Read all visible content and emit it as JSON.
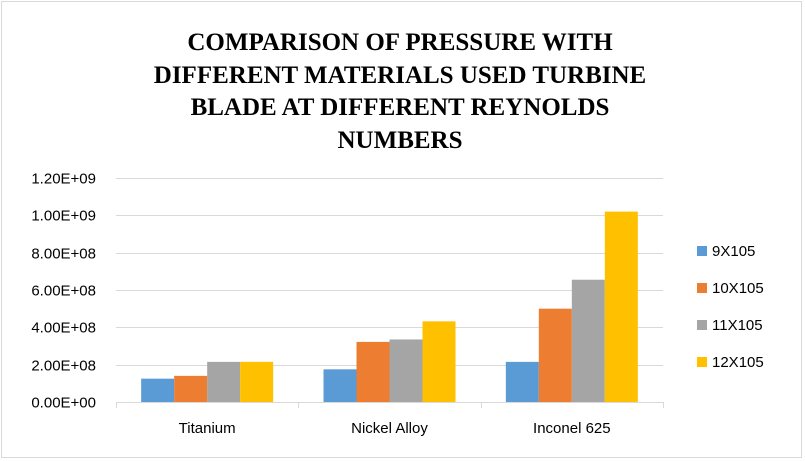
{
  "chart_data": {
    "type": "bar",
    "title": "COMPARISON OF PRESSURE WITH DIFFERENT MATERIALS USED TURBINE BLADE AT DIFFERENT REYNOLDS NUMBERS",
    "xlabel": "",
    "ylabel": "",
    "categories": [
      "Titanium",
      "Nickel Alloy",
      "Inconel 625"
    ],
    "series": [
      {
        "name": "9X105",
        "color": "#5b9bd5",
        "values": [
          125000000,
          175000000,
          215000000
        ]
      },
      {
        "name": "10X105",
        "color": "#ed7d31",
        "values": [
          140000000,
          322000000,
          500000000
        ]
      },
      {
        "name": "11X105",
        "color": "#a5a5a5",
        "values": [
          215000000,
          335000000,
          655000000
        ]
      },
      {
        "name": "12X105",
        "color": "#ffc000",
        "values": [
          215000000,
          432000000,
          1020000000
        ]
      }
    ],
    "ylim": [
      0,
      1200000000
    ],
    "yticks": [
      0,
      200000000,
      400000000,
      600000000,
      800000000,
      1000000000,
      1200000000
    ],
    "ytick_labels": [
      "0.00E+00",
      "2.00E+08",
      "4.00E+08",
      "6.00E+08",
      "8.00E+08",
      "1.00E+09",
      "1.20E+09"
    ],
    "grid": true,
    "legend_position": "right"
  }
}
